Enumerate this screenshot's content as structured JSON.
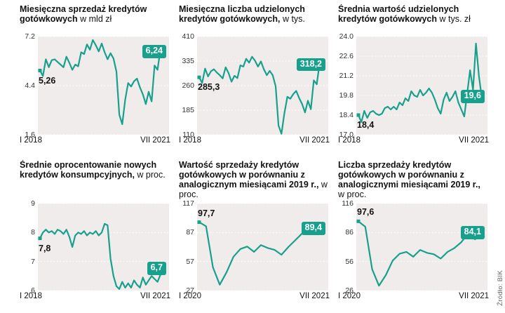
{
  "source": "Źródło: BIK",
  "accent": "#17a08b",
  "chart_data": [
    {
      "type": "line",
      "title_bold": "Miesięczna sprzedaż kredytów gotówkowych",
      "title_rest": " w mld zł",
      "y_ticks": [
        "7.2",
        "4.4",
        "1.6"
      ],
      "y_max": 7.2,
      "y_min": 1.6,
      "x_start": "I 2018",
      "x_end": "VII 2021",
      "start_label": "5,26",
      "start_label_pos": "below",
      "end_label": "6,24",
      "values": [
        5.26,
        4.95,
        5.9,
        5.45,
        5.85,
        5.9,
        5.75,
        5.6,
        5.45,
        6.05,
        5.7,
        5.3,
        5.6,
        5.5,
        6.3,
        6.2,
        6.75,
        6.45,
        7.0,
        6.7,
        6.35,
        6.8,
        6.3,
        5.9,
        6.25,
        5.95,
        5.2,
        2.75,
        2.2,
        3.6,
        4.55,
        4.35,
        4.65,
        4.8,
        4.3,
        3.9,
        3.35,
        4.05,
        3.5,
        5.55,
        5.3,
        6.5,
        6.24
      ]
    },
    {
      "type": "line",
      "title_bold": "Miesięczna liczba udzielonych kredytów gotówkowych,",
      "title_rest": " w tys.",
      "y_ticks": [
        "410",
        "335",
        "260",
        "185",
        "110"
      ],
      "y_max": 410,
      "y_min": 110,
      "x_start": "I 2018",
      "x_end": "VII 2021",
      "start_label": "285,3",
      "start_label_pos": "below",
      "end_label": "318,2",
      "values": [
        285.3,
        268,
        312,
        288,
        304,
        310,
        300,
        292,
        282,
        316,
        298,
        272,
        290,
        283,
        322,
        318,
        342,
        330,
        348,
        336,
        318,
        334,
        310,
        292,
        305,
        292,
        258,
        138,
        113,
        176,
        226,
        220,
        234,
        244,
        222,
        204,
        178,
        214,
        188,
        276,
        264,
        330,
        318.2
      ]
    },
    {
      "type": "line",
      "title_bold": "Średnia wartość udzielonych kredytów gotówkowych",
      "title_rest": " w tys. zł",
      "y_ticks": [
        "24.0",
        "22.6",
        "21.2",
        "19.8",
        "18.4",
        "17.0"
      ],
      "y_max": 24.0,
      "y_min": 17.0,
      "x_start": "I 2018",
      "x_end": "VII 2021",
      "start_label": "18,4",
      "start_label_pos": "below",
      "end_label": "19,6",
      "values": [
        18.4,
        17.9,
        18.7,
        18.2,
        18.6,
        18.7,
        18.5,
        18.4,
        18.5,
        18.9,
        19.0,
        18.8,
        19.0,
        18.8,
        19.3,
        19.1,
        19.6,
        19.4,
        20.1,
        19.8,
        19.7,
        20.2,
        19.8,
        20.0,
        20.3,
        20.0,
        19.5,
        18.9,
        18.5,
        19.5,
        20.0,
        19.4,
        19.7,
        20.1,
        19.3,
        18.8,
        18.3,
        19.9,
        21.6,
        20.2,
        23.5,
        21.2,
        19.6
      ]
    },
    {
      "type": "line",
      "title_bold": "Średnie oprocentowanie nowych kredytów konsumpcyjnych,",
      "title_rest": " w proc.",
      "y_ticks": [
        "9",
        "8",
        "7",
        "6"
      ],
      "y_max": 9,
      "y_min": 6,
      "x_start": "I 2018",
      "x_end": "VII 2021",
      "start_label": "7,8",
      "start_label_pos": "below",
      "end_label": "6,7",
      "values": [
        7.8,
        8.0,
        8.1,
        8.0,
        8.05,
        7.95,
        8.1,
        8.05,
        7.95,
        8.1,
        7.85,
        7.5,
        7.9,
        8.0,
        7.95,
        8.05,
        7.9,
        8.0,
        7.95,
        8.05,
        7.9,
        8.0,
        8.3,
        8.25,
        7.1,
        6.5,
        6.15,
        6.05,
        6.3,
        6.1,
        6.25,
        6.1,
        6.35,
        6.2,
        6.1,
        6.45,
        6.2,
        6.35,
        6.5,
        6.4,
        6.3,
        6.55,
        6.7
      ]
    },
    {
      "type": "line",
      "title_bold": "Wartość sprzedaży kredytów gotówkowych w porównaniu z analogicznym miesiącami 2019 r.,",
      "title_rest": " w proc.",
      "y_ticks": [
        "117",
        "87",
        "57",
        "27"
      ],
      "y_max": 117,
      "y_min": 27,
      "x_start": "I 2020",
      "x_end": "VII 2021",
      "start_label": "97,7",
      "start_label_pos": "above",
      "end_label": "89,4",
      "values": [
        97.7,
        93.5,
        51,
        33,
        46,
        62,
        70,
        72.5,
        67,
        74,
        71,
        69,
        64,
        72,
        79,
        86,
        93,
        86.5,
        89.4
      ]
    },
    {
      "type": "line",
      "title_bold": "Liczba sprzedaży kredytów gotówkowych w porównaniu z analogicznymi miesiącami 2019 r.,",
      "title_rest": " w proc.",
      "y_ticks": [
        "116",
        "86",
        "56",
        "26"
      ],
      "y_max": 116,
      "y_min": 26,
      "x_start": "I 2020",
      "x_end": "VII 2021",
      "start_label": "97,6",
      "start_label_pos": "above",
      "end_label": "84,1",
      "values": [
        97.6,
        92,
        48,
        31,
        42,
        57,
        64,
        66,
        61,
        68,
        65,
        63.5,
        59,
        66,
        70,
        76,
        85,
        79,
        84.1
      ]
    }
  ]
}
